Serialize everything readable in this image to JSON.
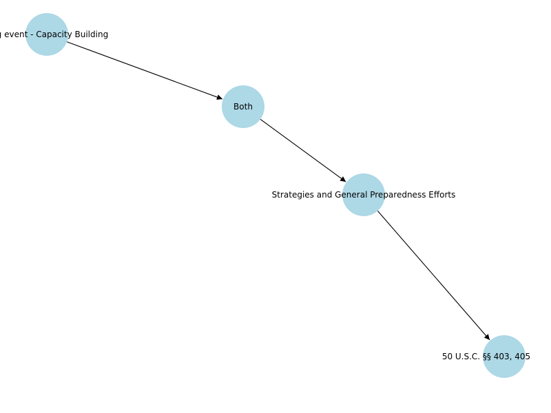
{
  "graph": {
    "node_color": "#add8e6",
    "edge_color": "#000000",
    "nodes": [
      {
        "id": "n1",
        "label": "ring event - Capacity Building"
      },
      {
        "id": "n2",
        "label": "Both"
      },
      {
        "id": "n3",
        "label": "Strategies and General Preparedness Efforts"
      },
      {
        "id": "n4",
        "label": "50 U.S.C. §§ 403, 405"
      }
    ],
    "edges": [
      {
        "from": "n1",
        "to": "n2"
      },
      {
        "from": "n2",
        "to": "n3"
      },
      {
        "from": "n3",
        "to": "n4"
      }
    ]
  }
}
